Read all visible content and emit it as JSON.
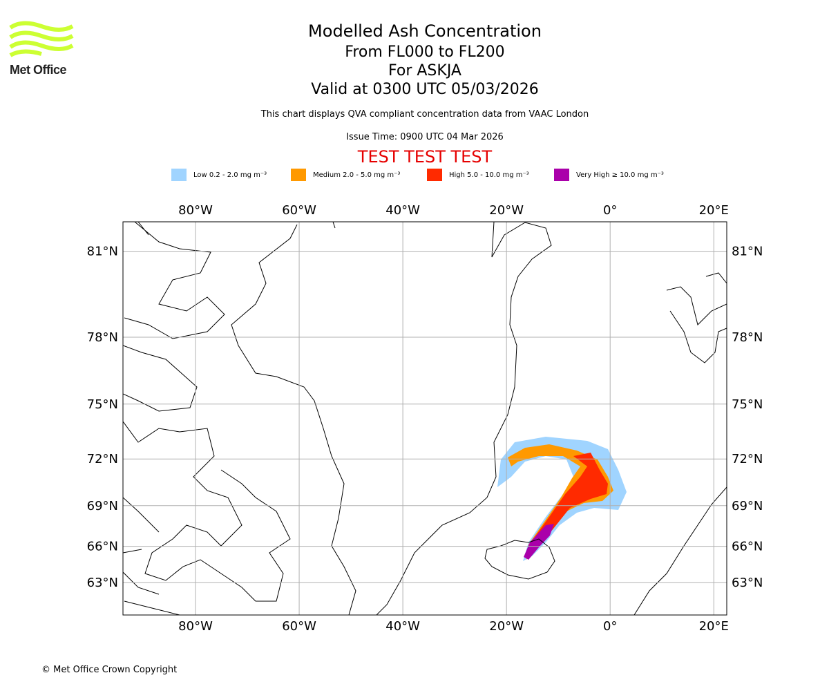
{
  "logo": {
    "text": "Met Office",
    "color": "#ccff33"
  },
  "title": {
    "line1": "Modelled Ash Concentration",
    "line2": "From FL000 to FL200",
    "line3": "For ASKJA",
    "line4": "Valid at 0300 UTC 05/03/2026"
  },
  "subtitle": "This chart displays QVA compliant concentration data from VAAC London",
  "issue_time": "Issue Time: 0900 UTC 04 Mar 2026",
  "test_banner": "TEST TEST TEST",
  "legend": [
    {
      "label": "Low 0.2 - 2.0 mg m⁻³",
      "color": "#a0d4ff"
    },
    {
      "label": "Medium 2.0 - 5.0 mg m⁻³",
      "color": "#ff9900"
    },
    {
      "label": "High 5.0 - 10.0 mg m⁻³",
      "color": "#ff2a00"
    },
    {
      "label": "Very High ≥ 10.0 mg m⁻³",
      "color": "#aa00aa"
    }
  ],
  "map": {
    "projection": "mercator",
    "lon_range": [
      -94,
      22.5
    ],
    "lat_range": [
      61.2,
      82.6
    ],
    "lon_ticks": [
      {
        "v": -80,
        "label": "80°W"
      },
      {
        "v": -60,
        "label": "60°W"
      },
      {
        "v": -40,
        "label": "40°W"
      },
      {
        "v": -20,
        "label": "20°W"
      },
      {
        "v": 0,
        "label": "0°"
      },
      {
        "v": 20,
        "label": "20°E"
      }
    ],
    "lat_ticks": [
      {
        "v": 81,
        "label": "81°N"
      },
      {
        "v": 78,
        "label": "78°N"
      },
      {
        "v": 75,
        "label": "75°N"
      },
      {
        "v": 72,
        "label": "72°N"
      },
      {
        "v": 69,
        "label": "69°N"
      },
      {
        "v": 66,
        "label": "66°N"
      },
      {
        "v": 63,
        "label": "63°N"
      }
    ],
    "grid_color": "#b0b0b0"
  },
  "copyright": "© Met Office Crown Copyright"
}
